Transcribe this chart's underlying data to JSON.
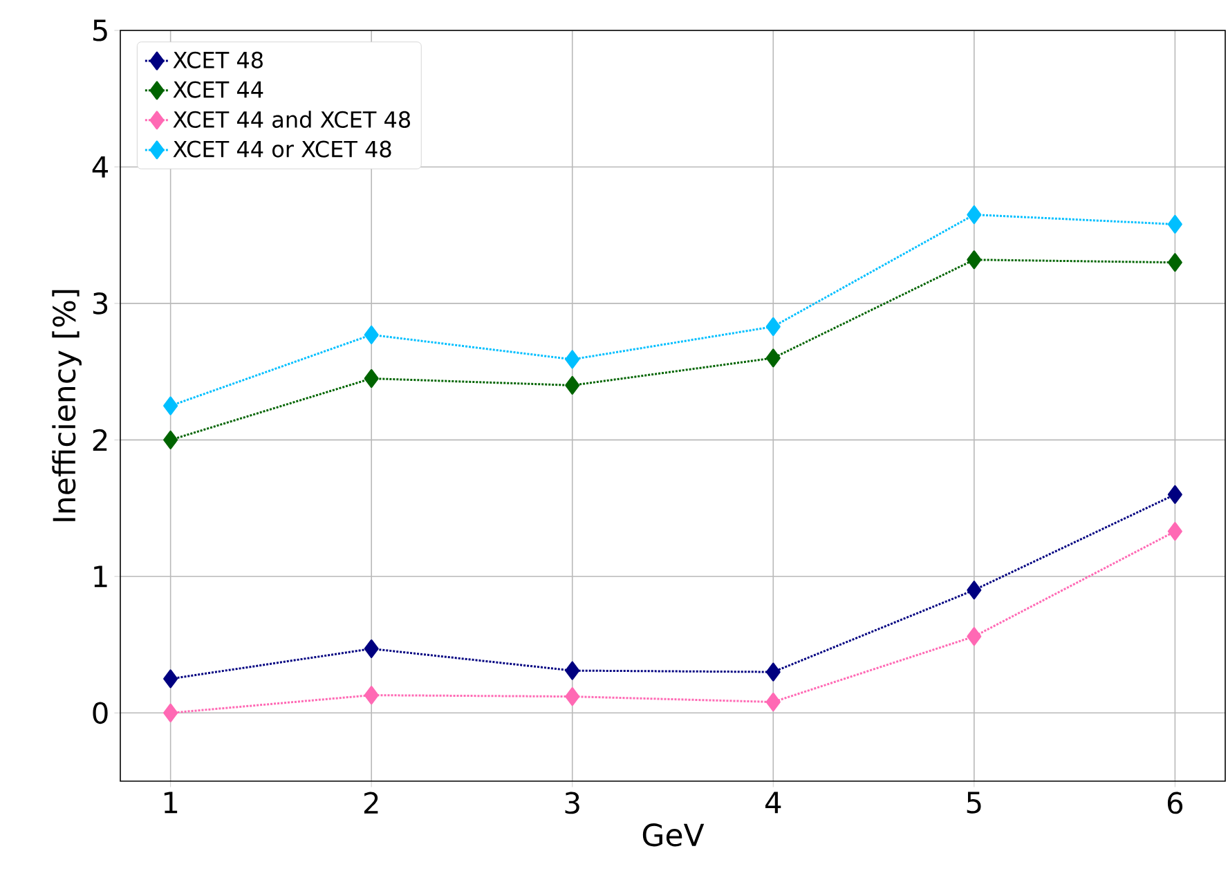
{
  "chart_data": {
    "type": "line",
    "xlabel": "GeV",
    "ylabel": "Inefficiency [%]",
    "x": [
      1,
      2,
      3,
      4,
      5,
      6
    ],
    "series": [
      {
        "name": "XCET 48",
        "color": "#000080",
        "values": [
          0.25,
          0.47,
          0.31,
          0.3,
          0.9,
          1.6
        ]
      },
      {
        "name": "XCET 44",
        "color": "#006400",
        "values": [
          2.0,
          2.45,
          2.4,
          2.6,
          3.32,
          3.3
        ]
      },
      {
        "name": "XCET 44 and XCET 48",
        "color": "#ff69b4",
        "values": [
          0.0,
          0.13,
          0.12,
          0.08,
          0.56,
          1.33
        ]
      },
      {
        "name": "XCET 44 or XCET 48",
        "color": "#00bfff",
        "values": [
          2.25,
          2.77,
          2.59,
          2.83,
          3.65,
          3.58
        ]
      }
    ],
    "xlim": [
      0.75,
      6.25
    ],
    "ylim": [
      -0.5,
      5
    ],
    "xticks": [
      1,
      2,
      3,
      4,
      5,
      6
    ],
    "yticks": [
      0,
      1,
      2,
      3,
      4,
      5
    ],
    "grid": true,
    "legend": "top left",
    "marker": "diamond",
    "line_style": "dotted"
  }
}
